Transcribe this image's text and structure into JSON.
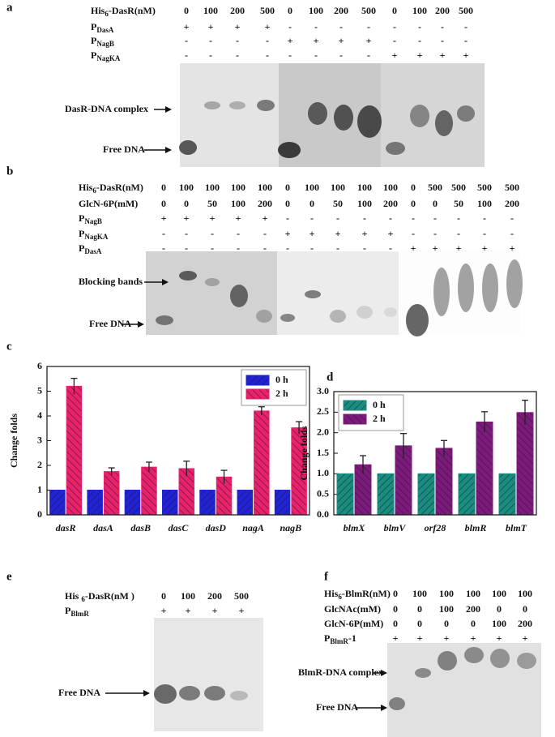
{
  "gels": [
    {
      "panel": "a",
      "rows": [
        {
          "label": [
            "His",
            "6",
            "-DasR(nM)"
          ],
          "cells": [
            0,
            100,
            200,
            500,
            0,
            100,
            200,
            500,
            0,
            100,
            200,
            500
          ]
        },
        {
          "label": [
            "P",
            "DasA"
          ],
          "cells": [
            "+",
            "+",
            "+",
            "+",
            "-",
            "-",
            "-",
            "-",
            "-",
            "-",
            "-",
            "-"
          ]
        },
        {
          "label": [
            "P",
            "NagB"
          ],
          "cells": [
            "-",
            "-",
            "-",
            "-",
            "+",
            "+",
            "+",
            "+",
            "-",
            "-",
            "-",
            "-"
          ]
        },
        {
          "label": [
            "P",
            "NagKA"
          ],
          "cells": [
            "-",
            "-",
            "-",
            "-",
            "-",
            "-",
            "-",
            "-",
            "+",
            "+",
            "+",
            "+"
          ]
        }
      ],
      "annotations": [
        "DasR-DNA complex",
        "Free DNA"
      ]
    },
    {
      "panel": "b",
      "rows": [
        {
          "label": [
            "His",
            "6",
            "-DasR(nM)"
          ],
          "cells": [
            0,
            100,
            100,
            100,
            100,
            0,
            100,
            100,
            100,
            100,
            0,
            500,
            500,
            500,
            500
          ]
        },
        {
          "label": [
            "GlcN-6P(mM)"
          ],
          "cells": [
            0,
            0,
            50,
            100,
            200,
            0,
            0,
            50,
            100,
            200,
            0,
            0,
            50,
            100,
            200
          ]
        },
        {
          "label": [
            "P",
            "NagB"
          ],
          "cells": [
            "+",
            "+",
            "+",
            "+",
            "+",
            "-",
            "-",
            "-",
            "-",
            "-",
            "-",
            "-",
            "-",
            "-",
            "-"
          ]
        },
        {
          "label": [
            "P",
            "NagKA"
          ],
          "cells": [
            "-",
            "-",
            "-",
            "-",
            "-",
            "+",
            "+",
            "+",
            "+",
            "+",
            "-",
            "-",
            "-",
            "-",
            "-"
          ]
        },
        {
          "label": [
            "P",
            "DasA"
          ],
          "cells": [
            "-",
            "-",
            "-",
            "-",
            "-",
            "-",
            "-",
            "-",
            "-",
            "-",
            "+",
            "+",
            "+",
            "+",
            "+"
          ]
        }
      ],
      "annotations": [
        "Blocking bands",
        "Free DNA"
      ]
    },
    {
      "panel": "e",
      "rows": [
        {
          "label": [
            "His ",
            "6",
            "-DasR(nM )"
          ],
          "cells": [
            0,
            100,
            200,
            500
          ]
        },
        {
          "label": [
            "P",
            "BlmR"
          ],
          "cells": [
            "+",
            "+",
            "+",
            "+"
          ]
        }
      ],
      "annotations": [
        "Free DNA"
      ]
    },
    {
      "panel": "f",
      "rows": [
        {
          "label": [
            "His",
            "6",
            "-BlmR(nM)"
          ],
          "cells": [
            0,
            100,
            100,
            100,
            100,
            100
          ]
        },
        {
          "label": [
            "GlcNAc(mM)"
          ],
          "cells": [
            0,
            0,
            100,
            200,
            0,
            0
          ]
        },
        {
          "label": [
            "GlcN-6P(mM)"
          ],
          "cells": [
            0,
            0,
            0,
            0,
            100,
            200
          ]
        },
        {
          "label": [
            "P",
            "BlmR",
            "-1"
          ],
          "cells": [
            "+",
            "+",
            "+",
            "+",
            "+",
            "+"
          ]
        }
      ],
      "annotations": [
        "BlmR-DNA complex",
        "Free DNA"
      ]
    }
  ],
  "chart_data": [
    {
      "type": "bar",
      "panel": "c",
      "ylabel": "Change folds",
      "categories": [
        "dasR",
        "dasA",
        "dasB",
        "dasC",
        "dasD",
        "nagA",
        "nagB"
      ],
      "series": [
        {
          "name": "0 h",
          "color": "#2323d6",
          "values": [
            1,
            1,
            1,
            1,
            1,
            1,
            1
          ]
        },
        {
          "name": "2 h",
          "color": "#e8226c",
          "values": [
            5.2,
            1.75,
            1.93,
            1.87,
            1.53,
            4.2,
            3.52
          ],
          "errors": [
            0.32,
            0.15,
            0.2,
            0.3,
            0.27,
            0.17,
            0.25
          ]
        }
      ],
      "ylim": [
        0,
        6
      ],
      "yticks": [
        0,
        1,
        2,
        3,
        4,
        5,
        6
      ],
      "legend": "upper right"
    },
    {
      "type": "bar",
      "panel": "d",
      "ylabel": "Change folds",
      "categories": [
        "blmX",
        "blmV",
        "orf28",
        "blmR",
        "blmT"
      ],
      "series": [
        {
          "name": "0 h",
          "color": "#1a8c80",
          "values": [
            1,
            1,
            1,
            1,
            1
          ]
        },
        {
          "name": "2 h",
          "color": "#7d1b7d",
          "values": [
            1.22,
            1.68,
            1.62,
            2.26,
            2.49
          ],
          "errors": [
            0.22,
            0.3,
            0.19,
            0.25,
            0.3
          ]
        }
      ],
      "ylim": [
        0,
        3
      ],
      "yticks": [
        {
          "value": 0,
          "label": "0.0"
        },
        {
          "value": 0.5,
          "label": "0.5"
        },
        {
          "value": 1,
          "label": "1.0"
        },
        {
          "value": 1.5,
          "label": "1.5"
        },
        {
          "value": 2,
          "label": "2.0"
        },
        {
          "value": 2.5,
          "label": "2.5"
        },
        {
          "value": 3,
          "label": "3.0"
        }
      ],
      "legend": "upper left"
    }
  ]
}
